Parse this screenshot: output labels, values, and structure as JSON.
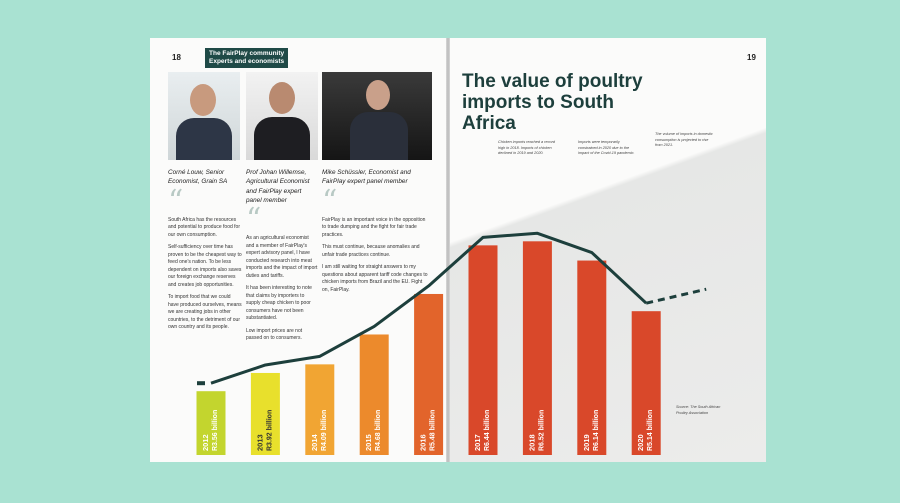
{
  "left_page": {
    "page_number": "18",
    "tag": [
      "The FairPlay community",
      "Experts and economists"
    ],
    "experts": [
      {
        "caption": "Corné Louw, Senior Economist, Grain SA",
        "paragraphs": [
          "South Africa has the resources and potential to produce food for our own consumption.",
          "Self-sufficiency over time has proven to be the cheapest way to feed one's nation. To be less dependent on imports also saves our foreign exchange reserves and creates job opportunities.",
          "To import food that we could have produced ourselves, means we are creating jobs in other countries, to the detriment of our own country and its people."
        ]
      },
      {
        "caption": "Prof Johan Willemse, Agricultural Economist and FairPlay expert panel member",
        "paragraphs": [
          "As an agricultural economist and a member of FairPlay's expert advisory panel, I have conducted research into meat imports and the impact of import duties and tariffs.",
          "It has been interesting to note that claims by importers to supply cheap chicken to poor consumers have not been substantiated.",
          "Low import prices are not passed on to consumers."
        ]
      },
      {
        "caption": "Mike Schüssler, Economist and FairPlay expert panel member",
        "paragraphs": [
          "FairPlay is an important voice in the opposition to trade dumping and the fight for fair trade practices.",
          "This must continue, because anomalies and unfair trade practices continue.",
          "I am still waiting for straight answers to my questions about apparent tariff code changes to chicken imports from Brazil and the EU. Fight on, FairPlay."
        ]
      }
    ]
  },
  "right_page": {
    "page_number": "19",
    "notes": [
      "Chicken imports reached a record high in 2018. Imports of chicken declined in 2019 and 2020.",
      "Imports were temporarily constrained in 2020 due to the impact of the Covid-19 pandemic.",
      "The volume of imports in domestic consumption is projected to rise from 2021.",
      "Source: The South African Poultry Association"
    ]
  },
  "chart_data": {
    "type": "bar",
    "title": "The value of poultry imports to South Africa",
    "categories": [
      "2012",
      "2013",
      "2014",
      "2015",
      "2016",
      "2017",
      "2018",
      "2019",
      "2020"
    ],
    "values": [
      3.56,
      3.92,
      4.09,
      4.68,
      5.48,
      6.44,
      6.52,
      6.14,
      5.14
    ],
    "value_labels": [
      "R3.56 billion",
      "R3.92 billion",
      "R4.09 billion",
      "R4.68 billion",
      "R5.48 billion",
      "R6.44 billion",
      "R6.52 billion",
      "R6.14 billion",
      "R5.14 billion"
    ],
    "colors": [
      "#c3d52e",
      "#e8e02c",
      "#f1a533",
      "#ec8a2c",
      "#e2642b",
      "#d9482a",
      "#d9482a",
      "#d9482a",
      "#d9482a"
    ],
    "line_color": "#1d3f3c",
    "ylim": [
      2.3,
      7.0
    ]
  }
}
